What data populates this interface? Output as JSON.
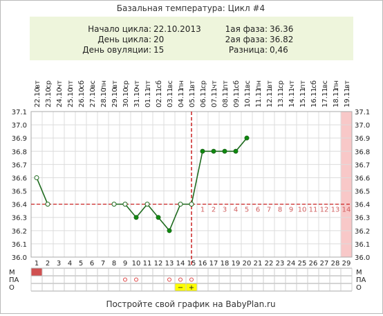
{
  "title": "Базальная температура: Цикл #4",
  "summary": {
    "left": [
      {
        "label": "Начало цикла:",
        "value": "22.10.2013"
      },
      {
        "label": "День цикла:",
        "value": "20"
      },
      {
        "label": "День овуляции:",
        "value": "15"
      }
    ],
    "right": [
      {
        "label": "1ая фаза:",
        "value": "36.36"
      },
      {
        "label": "2ая фаза:",
        "value": "36.82"
      },
      {
        "label": "Разница:",
        "value": "0,46"
      }
    ]
  },
  "footer": "Постройте свой график на BabyPlan.ru",
  "row_labels": [
    "М",
    "ПА",
    "О"
  ],
  "colors": {
    "panel": "#eef5dc",
    "line": "#1f6b1f",
    "point_fill": "#0e8a0e",
    "coverline": "#cc2222",
    "ovulation": "#cc2222",
    "phase_number": "#d06060",
    "highlight_col": "#f8c8c8",
    "menstruation": "#d05050",
    "mark_o": "#dd4444",
    "test_cell": "#ffff00"
  },
  "chart_data": {
    "type": "line",
    "y_ticks": [
      "37.1",
      "37.0",
      "36.9",
      "36.8",
      "36.7",
      "36.6",
      "36.5",
      "36.4",
      "36.3",
      "36.2",
      "36.1",
      "36.0"
    ],
    "ylim": [
      36.0,
      37.1
    ],
    "days": [
      1,
      2,
      3,
      4,
      5,
      6,
      7,
      8,
      9,
      10,
      11,
      12,
      13,
      14,
      15,
      16,
      17,
      18,
      19,
      20,
      21,
      22,
      23,
      24,
      25,
      26,
      27,
      28,
      29
    ],
    "dates": [
      "22.10",
      "23.10",
      "24.10",
      "25.10",
      "26.10",
      "27.10",
      "28.10",
      "29.10",
      "30.10",
      "31.10",
      "01.11",
      "02.11",
      "03.11",
      "04.11",
      "05.11",
      "06.11",
      "07.11",
      "08.11",
      "09.11",
      "10.11",
      "11.11",
      "12.11",
      "13.11",
      "14.11",
      "15.11",
      "16.11",
      "17.11",
      "18.11",
      "19.11"
    ],
    "weekdays": [
      "вт",
      "ср",
      "чт",
      "пт",
      "сб",
      "вс",
      "пн",
      "вт",
      "ср",
      "чт",
      "пт",
      "сб",
      "вс",
      "пн",
      "вт",
      "ср",
      "чт",
      "пт",
      "сб",
      "вс",
      "пн",
      "вт",
      "ср",
      "чт",
      "пт",
      "сб",
      "вс",
      "пн",
      "вт"
    ],
    "temperatures": [
      36.6,
      36.4,
      null,
      null,
      null,
      null,
      null,
      36.4,
      36.4,
      36.3,
      36.4,
      36.3,
      36.2,
      36.4,
      36.4,
      36.8,
      36.8,
      36.8,
      36.8,
      36.9,
      null,
      null,
      null,
      null,
      null,
      null,
      null,
      null,
      null
    ],
    "open_points": [
      1,
      2,
      8,
      9,
      11,
      14,
      15
    ],
    "coverline": 36.4,
    "ovulation_day": 15,
    "phase_numbers": [
      "1",
      "2",
      "3",
      "4",
      "5",
      "6",
      "7",
      "8",
      "9",
      "10",
      "11",
      "12",
      "13",
      "14"
    ],
    "highlight_day": 29,
    "moon_day": 18,
    "menstruation_days": [
      1
    ],
    "pa_days": [
      9,
      10,
      13,
      14,
      15
    ],
    "test_days": [
      {
        "day": 14,
        "label": "−"
      },
      {
        "day": 15,
        "label": "+"
      }
    ]
  }
}
